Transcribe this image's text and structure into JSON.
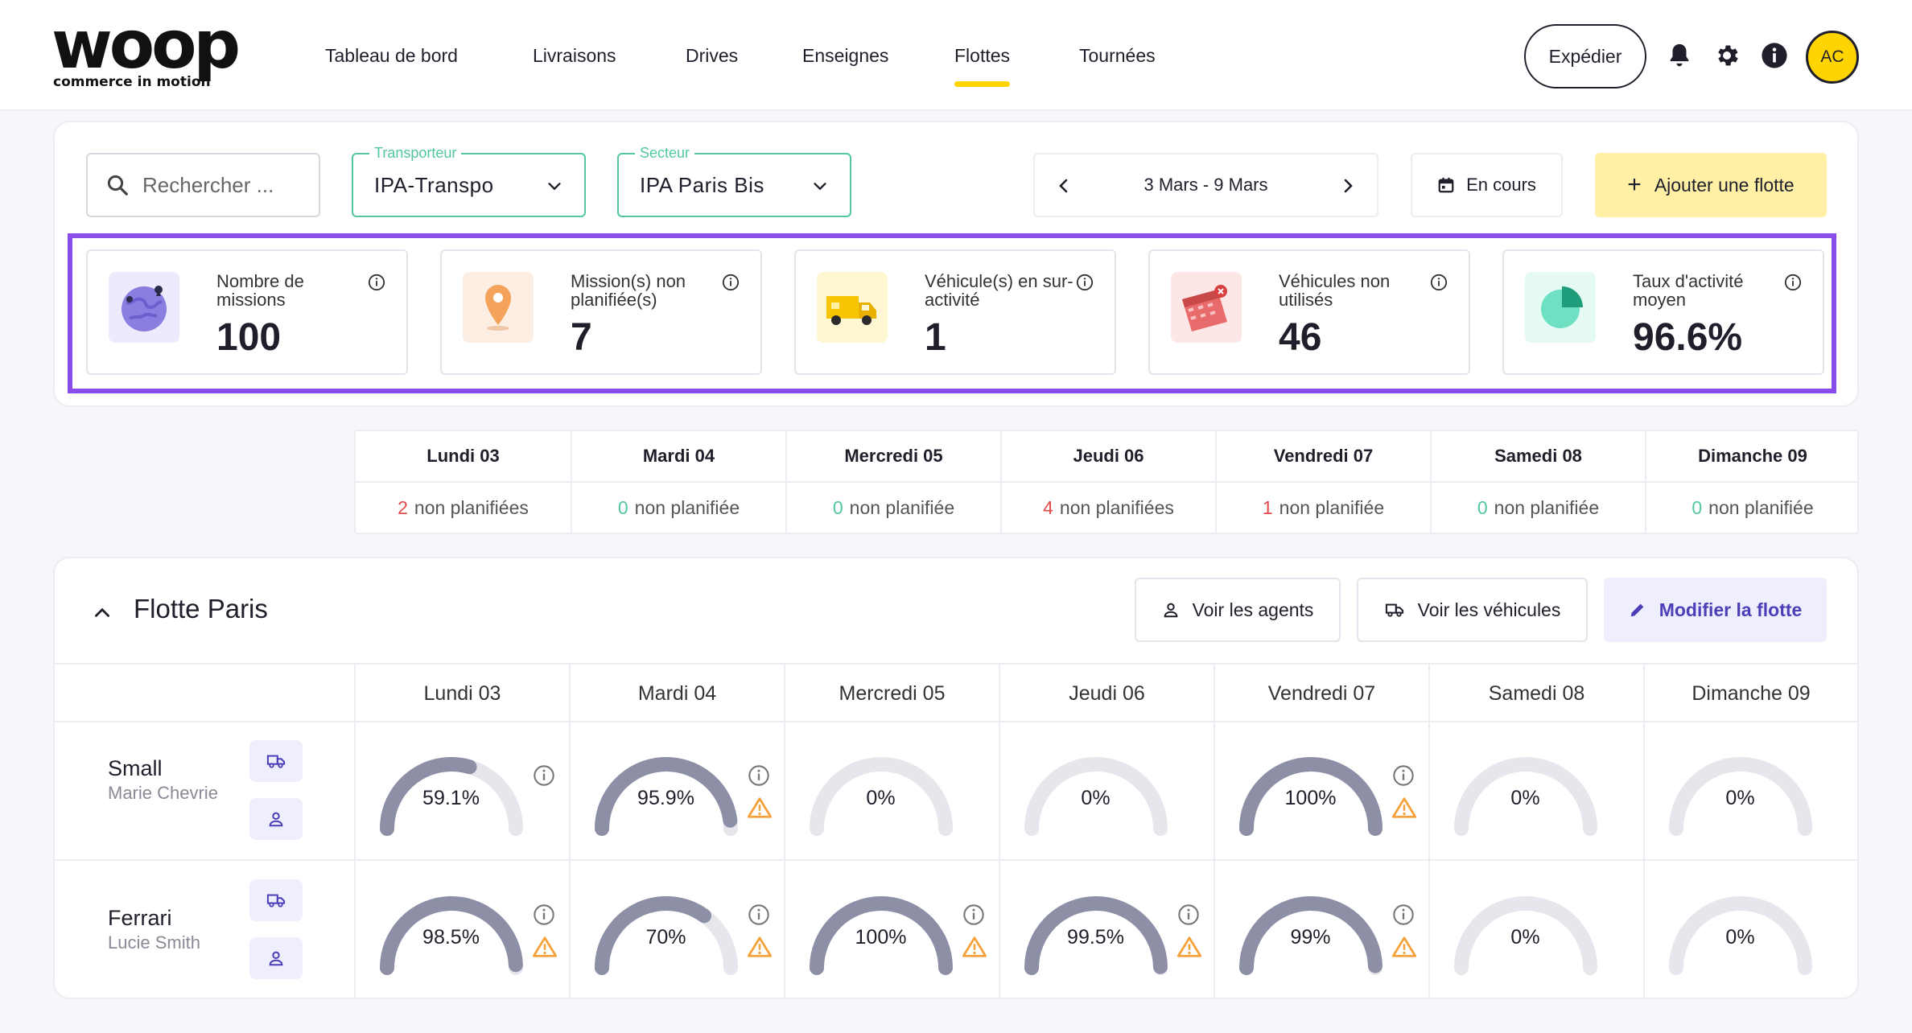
{
  "brand": {
    "name": "woop",
    "tagline": "commerce in motion"
  },
  "nav": [
    {
      "label": "Tableau de bord",
      "active": false
    },
    {
      "label": "Livraisons",
      "active": false
    },
    {
      "label": "Drives",
      "active": false
    },
    {
      "label": "Enseignes",
      "active": false
    },
    {
      "label": "Flottes",
      "active": true
    },
    {
      "label": "Tournées",
      "active": false
    }
  ],
  "header": {
    "ship_label": "Expédier",
    "avatar_initials": "AC"
  },
  "filters": {
    "search_placeholder": "Rechercher ...",
    "carrier": {
      "label": "Transporteur",
      "value": "IPA-Transpo"
    },
    "sector": {
      "label": "Secteur",
      "value": "IPA Paris Bis"
    },
    "week": "3 Mars - 9 Mars",
    "status": "En cours",
    "add_fleet": "Ajouter une flotte"
  },
  "kpis": [
    {
      "label": "Nombre de missions",
      "value": "100",
      "icon": "globe-icon"
    },
    {
      "label": "Mission(s) non planifiée(s)",
      "value": "7",
      "icon": "map-pin-icon"
    },
    {
      "label": "Véhicule(s) en sur-activité",
      "value": "1",
      "icon": "truck-icon"
    },
    {
      "label": "Véhicules non utilisés",
      "value": "46",
      "icon": "calendar-icon"
    },
    {
      "label": "Taux d'activité moyen",
      "value": "96.6%",
      "icon": "pie-chart-icon"
    }
  ],
  "planning": [
    {
      "day": "Lundi 03",
      "count": "2",
      "text": "non planifiées",
      "status": "red"
    },
    {
      "day": "Mardi 04",
      "count": "0",
      "text": "non planifiée",
      "status": "green"
    },
    {
      "day": "Mercredi 05",
      "count": "0",
      "text": "non planifiée",
      "status": "green"
    },
    {
      "day": "Jeudi 06",
      "count": "4",
      "text": "non planifiées",
      "status": "red"
    },
    {
      "day": "Vendredi 07",
      "count": "1",
      "text": "non planifiée",
      "status": "red"
    },
    {
      "day": "Samedi 08",
      "count": "0",
      "text": "non planifiée",
      "status": "green"
    },
    {
      "day": "Dimanche 09",
      "count": "0",
      "text": "non planifiée",
      "status": "green"
    }
  ],
  "fleet": {
    "title": "Flotte Paris",
    "buttons": {
      "agents": "Voir les agents",
      "vehicles": "Voir les véhicules",
      "edit": "Modifier la flotte"
    },
    "days": [
      "Lundi 03",
      "Mardi 04",
      "Mercredi 05",
      "Jeudi 06",
      "Vendredi 07",
      "Samedi 08",
      "Dimanche 09"
    ],
    "rows": [
      {
        "vehicle": "Small",
        "agent": "Marie Chevrie",
        "cells": [
          {
            "label": "59.1%",
            "fill": 0.591,
            "info": true,
            "warn": false
          },
          {
            "label": "95.9%",
            "fill": 0.959,
            "info": true,
            "warn": true
          },
          {
            "label": "0%",
            "fill": 0,
            "info": false,
            "warn": false
          },
          {
            "label": "0%",
            "fill": 0,
            "info": false,
            "warn": false
          },
          {
            "label": "100%",
            "fill": 1,
            "info": true,
            "warn": true
          },
          {
            "label": "0%",
            "fill": 0,
            "info": false,
            "warn": false
          },
          {
            "label": "0%",
            "fill": 0,
            "info": false,
            "warn": false
          }
        ]
      },
      {
        "vehicle": "Ferrari",
        "agent": "Lucie Smith",
        "cells": [
          {
            "label": "98.5%",
            "fill": 0.985,
            "info": true,
            "warn": true
          },
          {
            "label": "70%",
            "fill": 0.7,
            "info": true,
            "warn": true
          },
          {
            "label": "100%",
            "fill": 1,
            "info": true,
            "warn": true
          },
          {
            "label": "99.5%",
            "fill": 0.995,
            "info": true,
            "warn": true
          },
          {
            "label": "99%",
            "fill": 0.99,
            "info": true,
            "warn": true
          },
          {
            "label": "0%",
            "fill": 0,
            "info": false,
            "warn": false
          },
          {
            "label": "0%",
            "fill": 0,
            "info": false,
            "warn": false
          }
        ]
      }
    ]
  },
  "colors": {
    "accent": "#ffd400",
    "kpi_highlight": "#8a4dec",
    "select_border": "#52c7a0",
    "gauge_fill": "#8d8fa6",
    "gauge_track": "#e6e6ec",
    "warning": "#f5a13a",
    "danger": "#e54848"
  }
}
